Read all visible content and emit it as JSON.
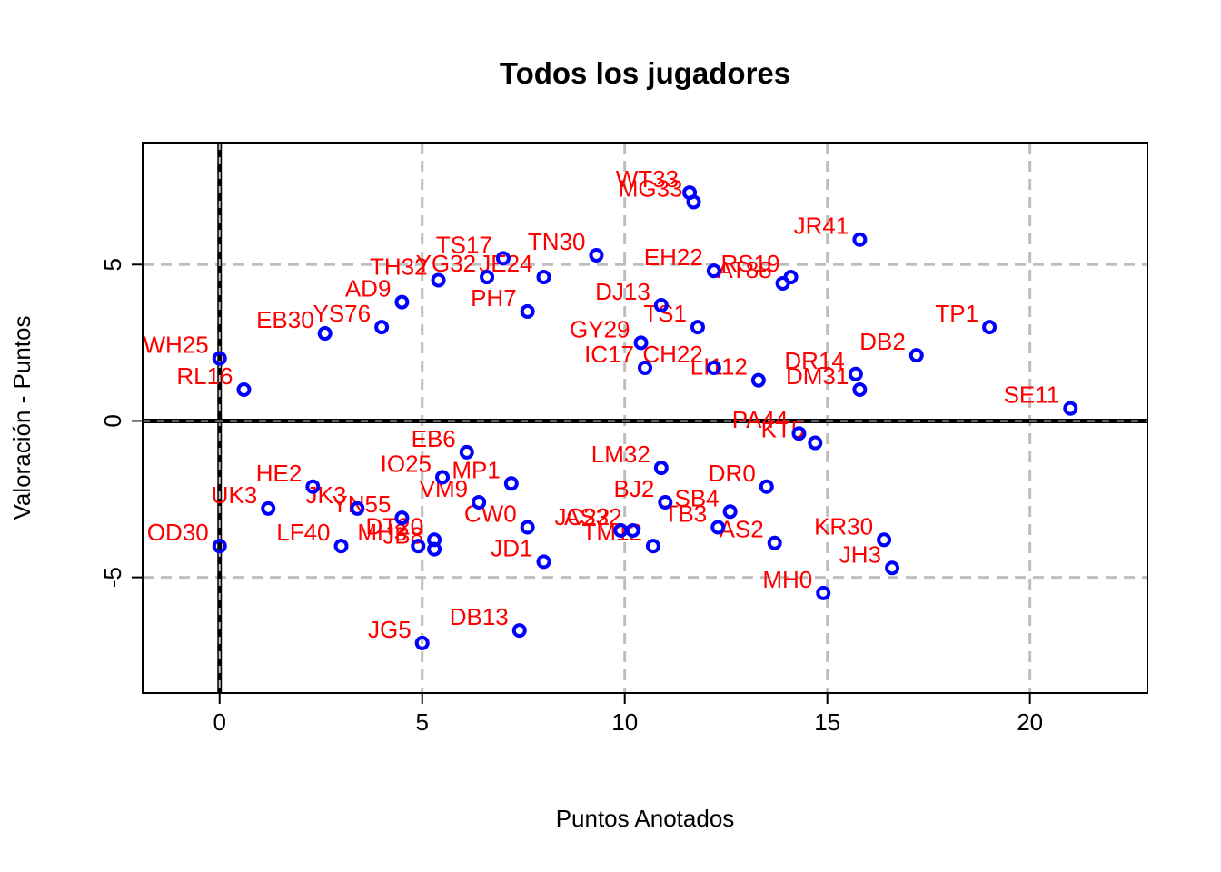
{
  "chart_data": {
    "type": "scatter",
    "title": "Todos los jugadores",
    "xlabel": "Puntos Anotados",
    "ylabel": "Valoración - Puntos",
    "xlim": [
      -1.9,
      22.9
    ],
    "ylim": [
      -8.7,
      8.9
    ],
    "xticks": [
      0,
      5,
      10,
      15,
      20
    ],
    "yticks": [
      -5,
      0,
      5
    ],
    "xtick_labels": [
      "0",
      "5",
      "10",
      "15",
      "20"
    ],
    "ytick_labels": [
      "-5",
      "0",
      "5"
    ],
    "grid": true,
    "reference_lines": {
      "x": 0,
      "y": 0
    },
    "colors": {
      "points": "#0000ff",
      "labels": "#ff0000",
      "grid": "#bebebe",
      "reference": "#000000"
    },
    "points": [
      {
        "label": "WT33",
        "x": 11.6,
        "y": 7.3
      },
      {
        "label": "MG33",
        "x": 11.7,
        "y": 7.0
      },
      {
        "label": "JR41",
        "x": 15.8,
        "y": 5.8
      },
      {
        "label": "TP1",
        "x": 19.0,
        "y": 3.0
      },
      {
        "label": "DB2",
        "x": 17.2,
        "y": 2.1
      },
      {
        "label": "SE11",
        "x": 21.0,
        "y": 0.4
      },
      {
        "label": "DR14",
        "x": 15.7,
        "y": 1.5
      },
      {
        "label": "DM31",
        "x": 15.8,
        "y": 1.0
      },
      {
        "label": "EH22",
        "x": 12.2,
        "y": 4.8
      },
      {
        "label": "RS19",
        "x": 14.1,
        "y": 4.6
      },
      {
        "label": "AT88",
        "x": 13.9,
        "y": 4.4
      },
      {
        "label": "KR30",
        "x": 16.4,
        "y": -3.8
      },
      {
        "label": "JH3",
        "x": 16.6,
        "y": -4.7
      },
      {
        "label": "MH0",
        "x": 14.9,
        "y": -5.5
      },
      {
        "label": "KT5",
        "x": 14.7,
        "y": -0.7
      },
      {
        "label": "PA44",
        "x": 14.3,
        "y": -0.4
      },
      {
        "label": "DR0",
        "x": 13.5,
        "y": -2.1
      },
      {
        "label": "AS2",
        "x": 13.7,
        "y": -3.9
      },
      {
        "label": "LI112",
        "x": 13.3,
        "y": 1.3
      },
      {
        "label": "CH22",
        "x": 12.2,
        "y": 1.7
      },
      {
        "label": "TS1",
        "x": 11.8,
        "y": 3.0
      },
      {
        "label": "DJ13",
        "x": 10.9,
        "y": 3.7
      },
      {
        "label": "GY29",
        "x": 10.4,
        "y": 2.5
      },
      {
        "label": "IC17",
        "x": 10.5,
        "y": 1.7
      },
      {
        "label": "TB3",
        "x": 12.3,
        "y": -3.4
      },
      {
        "label": "TM12",
        "x": 10.7,
        "y": -4.0
      },
      {
        "label": "SB4",
        "x": 12.6,
        "y": -2.9
      },
      {
        "label": "BJ2",
        "x": 11.0,
        "y": -2.6
      },
      {
        "label": "LM32",
        "x": 10.9,
        "y": -1.5
      },
      {
        "label": "AS32",
        "x": 10.2,
        "y": -3.5
      },
      {
        "label": "JC22",
        "x": 9.9,
        "y": -3.5
      },
      {
        "label": "JD1",
        "x": 8.0,
        "y": -4.5
      },
      {
        "label": "DB13",
        "x": 7.4,
        "y": -6.7
      },
      {
        "label": "JG5",
        "x": 5.0,
        "y": -7.1
      },
      {
        "label": "CW0",
        "x": 7.6,
        "y": -3.4
      },
      {
        "label": "TN30",
        "x": 9.3,
        "y": 5.3
      },
      {
        "label": "TS17",
        "x": 7.0,
        "y": 5.2
      },
      {
        "label": "YG32",
        "x": 6.6,
        "y": 4.6
      },
      {
        "label": "TH32",
        "x": 5.4,
        "y": 4.5
      },
      {
        "label": "JE24",
        "x": 8.0,
        "y": 4.6
      },
      {
        "label": "AD9",
        "x": 4.5,
        "y": 3.8
      },
      {
        "label": "PH7",
        "x": 7.6,
        "y": 3.5
      },
      {
        "label": "EB30",
        "x": 2.6,
        "y": 2.8
      },
      {
        "label": "YS76",
        "x": 4.0,
        "y": 3.0
      },
      {
        "label": "WH25",
        "x": 0.0,
        "y": 2.0
      },
      {
        "label": "RL16",
        "x": 0.6,
        "y": 1.0
      },
      {
        "label": "OD30",
        "x": 0.0,
        "y": -4.0
      },
      {
        "label": "LF40",
        "x": 3.0,
        "y": -4.0
      },
      {
        "label": "UK3",
        "x": 1.2,
        "y": -2.8
      },
      {
        "label": "JK3",
        "x": 3.4,
        "y": -2.8
      },
      {
        "label": "YN55",
        "x": 4.5,
        "y": -3.1
      },
      {
        "label": "DT20",
        "x": 5.3,
        "y": -3.8
      },
      {
        "label": "MH3",
        "x": 4.9,
        "y": -4.0
      },
      {
        "label": "JB8",
        "x": 5.3,
        "y": -4.1
      },
      {
        "label": "VM9",
        "x": 6.4,
        "y": -2.6
      },
      {
        "label": "MP1",
        "x": 7.2,
        "y": -2.0
      },
      {
        "label": "EB6",
        "x": 6.1,
        "y": -1.0
      },
      {
        "label": "IO25",
        "x": 5.5,
        "y": -1.8
      },
      {
        "label": "HE2",
        "x": 2.3,
        "y": -2.1
      }
    ]
  }
}
